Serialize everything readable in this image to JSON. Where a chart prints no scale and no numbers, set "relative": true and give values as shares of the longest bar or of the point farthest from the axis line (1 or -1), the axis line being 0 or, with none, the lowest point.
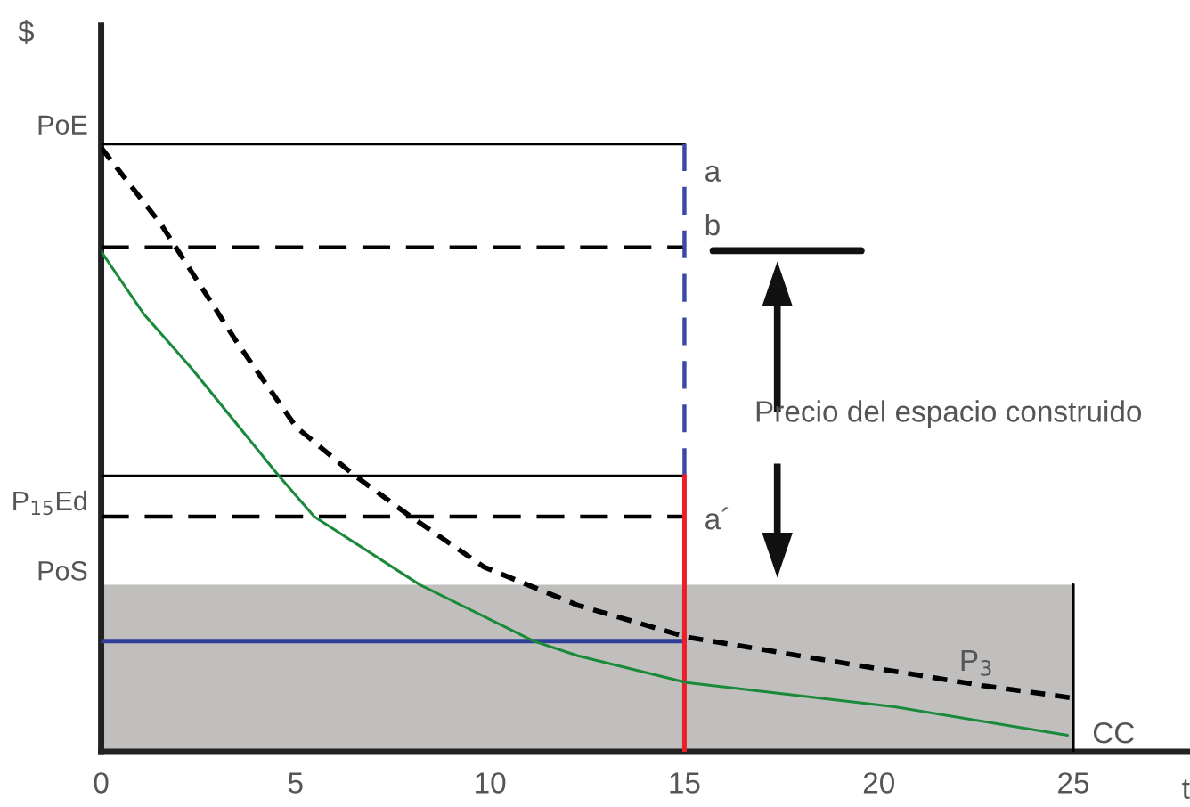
{
  "chart_data": {
    "type": "line",
    "relative": true,
    "xlabel": "t",
    "ylabel": "$",
    "xlim": [
      0,
      28
    ],
    "xticks": [
      0,
      5,
      10,
      15,
      20,
      25
    ],
    "grid": false,
    "legend": false,
    "annotations": [
      "PoE",
      "P$_{15}$Ed",
      "PoS",
      "Precio del espacio construido"
    ],
    "series": [
      {
        "type": "area",
        "color": "#c0bfbe",
        "x": [
          0,
          25
        ],
        "values": [
          0.275,
          0.275
        ]
      },
      {
        "name": "a",
        "color": "#000000",
        "line_style": "solid",
        "x": [
          0,
          15
        ],
        "values": [
          1.0,
          1.0
        ]
      },
      {
        "name": "b",
        "color": "#000000",
        "line_style": "dashed",
        "x": [
          0,
          15
        ],
        "values": [
          0.83,
          0.83
        ]
      },
      {
        "color": "#000000",
        "line_style": "solid",
        "x": [
          0,
          15
        ],
        "values": [
          0.454,
          0.454
        ]
      },
      {
        "name": "a´",
        "color": "#000000",
        "line_style": "dashed",
        "x": [
          0,
          15
        ],
        "values": [
          0.387,
          0.387
        ]
      },
      {
        "color": "#2e3e9a",
        "line_style": "solid",
        "x": [
          0,
          15
        ],
        "values": [
          0.182,
          0.182
        ]
      },
      {
        "color": "#3a48a8",
        "line_style": "dashed",
        "x": [
          15,
          15
        ],
        "values": [
          0.454,
          1.0
        ]
      },
      {
        "color": "#e8202a",
        "line_style": "solid",
        "x": [
          15,
          15
        ],
        "values": [
          0,
          0.454
        ]
      },
      {
        "color": "#000000",
        "line_style": "solid",
        "x": [
          25,
          25
        ],
        "values": [
          0,
          0.275
        ]
      },
      {
        "name": "P$_{3}$",
        "color": "#000000",
        "line_style": "dotted",
        "x": [
          0,
          1.55,
          3.52,
          5.02,
          6.53,
          7.96,
          9.85,
          12.26,
          15.05,
          18.9,
          22.67,
          24.93
        ],
        "values": [
          0.994,
          0.867,
          0.671,
          0.534,
          0.454,
          0.387,
          0.304,
          0.241,
          0.189,
          0.148,
          0.109,
          0.089
        ]
      },
      {
        "name": "CC",
        "color": "#1a8a3a",
        "line_style": "solid",
        "x": [
          0,
          1.1,
          2.31,
          4.57,
          5.48,
          8.19,
          11.13,
          12.26,
          15.05,
          20.4,
          24.85
        ],
        "values": [
          0.823,
          0.72,
          0.632,
          0.454,
          0.387,
          0.275,
          0.182,
          0.158,
          0.114,
          0.074,
          0.027
        ]
      }
    ]
  }
}
